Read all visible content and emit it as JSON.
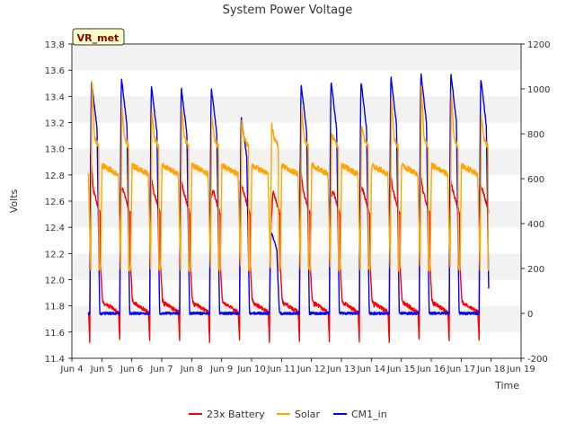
{
  "chart_data": {
    "type": "line",
    "title": "System Power Voltage",
    "xlabel": "Time",
    "ylabel": "Volts",
    "ylim": [
      11.4,
      13.8
    ],
    "y2lim": [
      -200,
      1200
    ],
    "xlim": [
      4,
      19
    ],
    "x_ticks": [
      4,
      5,
      6,
      7,
      8,
      9,
      10,
      11,
      12,
      13,
      14,
      15,
      16,
      17,
      18,
      19
    ],
    "x_tick_labels": [
      "Jun 4",
      "Jun 5",
      "Jun 6",
      "Jun 7",
      "Jun 8",
      "Jun 9",
      "Jun 10",
      "Jun 11",
      "Jun 12",
      "Jun 13",
      "Jun 14",
      "Jun 15",
      "Jun 16",
      "Jun 17",
      "Jun 18",
      "Jun 19"
    ],
    "y_ticks": [
      "11.4",
      "11.6",
      "11.8",
      "12.0",
      "12.2",
      "12.4",
      "12.6",
      "12.8",
      "13.0",
      "13.2",
      "13.4",
      "13.6",
      "13.8"
    ],
    "y2_ticks": [
      "-200",
      "0",
      "200",
      "400",
      "600",
      "800",
      "1000",
      "1200"
    ],
    "annotation": "VR_met",
    "grid": "horizontal bands",
    "legend_position": "bottom",
    "series": [
      {
        "name": "23x Battery",
        "axis": "left",
        "color": "#ff0000",
        "profile": {
          "night": 11.78,
          "morning_dip": 11.52,
          "peak": 12.97,
          "day_plateau": 12.68,
          "evening": 12.5
        },
        "peaks": [
          12.97,
          12.7,
          12.82,
          12.82,
          12.6,
          12.75,
          12.3,
          12.88,
          12.62,
          12.72,
          12.84,
          12.85,
          12.78,
          12.72
        ]
      },
      {
        "name": "Solar",
        "axis": "right",
        "color": "#ffa500",
        "profile": {
          "night": 630,
          "low": 200,
          "peak": 1040,
          "day_plateau": 780
        },
        "peaks": [
          1040,
          920,
          900,
          920,
          880,
          850,
          840,
          920,
          790,
          830,
          970,
          1010,
          980,
          880
        ]
      },
      {
        "name": "CM1_in",
        "axis": "right",
        "color": "#0000ff",
        "profile": {
          "night": 0,
          "peak": 1030
        },
        "peaks": [
          1030,
          1045,
          1010,
          1000,
          1000,
          870,
          360,
          1015,
          1030,
          1030,
          1050,
          1065,
          1065,
          1045
        ]
      }
    ]
  }
}
